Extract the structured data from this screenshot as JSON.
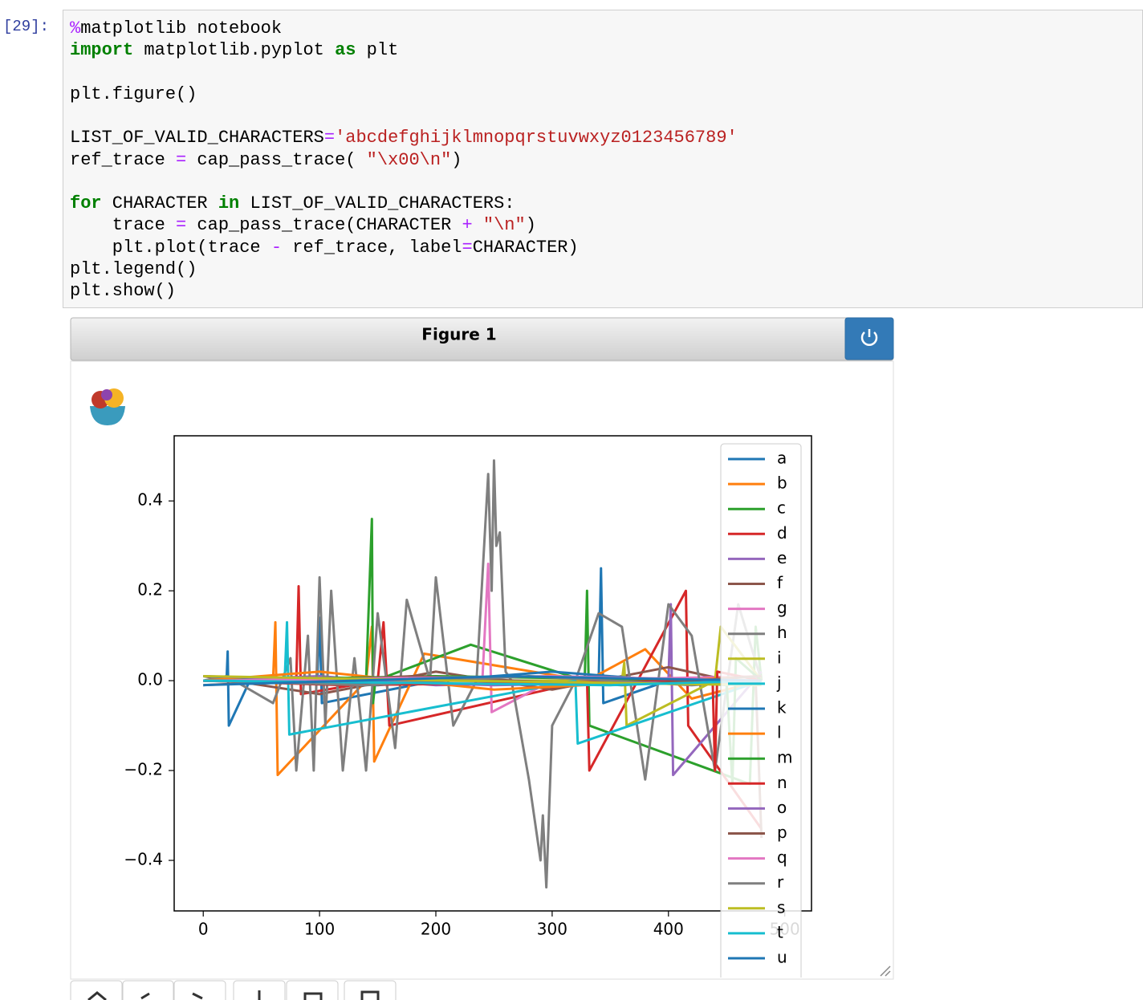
{
  "notebook": {
    "prompt": "[29]:",
    "code": [
      [
        {
          "text": "%",
          "color": "#aa22ff"
        },
        {
          "text": "matplotlib notebook"
        }
      ],
      [
        {
          "text": "import",
          "color": "#008000",
          "bold": true
        },
        {
          "text": " matplotlib.pyplot "
        },
        {
          "text": "as",
          "color": "#008000",
          "bold": true
        },
        {
          "text": " plt"
        }
      ],
      [],
      [
        {
          "text": "plt.figure()"
        }
      ],
      [],
      [
        {
          "text": "LIST_OF_VALID_CHARACTERS"
        },
        {
          "text": "=",
          "color": "#aa22ff"
        },
        {
          "text": "'abcdefghijklmnopqrstuvwxyz0123456789'",
          "color": "#ba2121"
        }
      ],
      [
        {
          "text": "ref_trace "
        },
        {
          "text": "=",
          "color": "#aa22ff"
        },
        {
          "text": " cap_pass_trace( "
        },
        {
          "text": "\"\\x00\\n\"",
          "color": "#ba2121"
        },
        {
          "text": ")"
        }
      ],
      [],
      [
        {
          "text": "for",
          "color": "#008000",
          "bold": true
        },
        {
          "text": " CHARACTER "
        },
        {
          "text": "in",
          "color": "#008000",
          "bold": true
        },
        {
          "text": " LIST_OF_VALID_CHARACTERS:"
        }
      ],
      [
        {
          "text": "    trace "
        },
        {
          "text": "=",
          "color": "#aa22ff"
        },
        {
          "text": " cap_pass_trace(CHARACTER "
        },
        {
          "text": "+",
          "color": "#aa22ff"
        },
        {
          "text": " "
        },
        {
          "text": "\"\\n\"",
          "color": "#ba2121"
        },
        {
          "text": ")"
        }
      ],
      [
        {
          "text": "    plt.plot(trace "
        },
        {
          "text": "-",
          "color": "#aa22ff"
        },
        {
          "text": " ref_trace, label"
        },
        {
          "text": "=",
          "color": "#aa22ff"
        },
        {
          "text": "CHARACTER)"
        }
      ],
      [
        {
          "text": "plt.legend()"
        }
      ],
      [
        {
          "text": "plt.show()"
        }
      ]
    ],
    "figure_title": "Figure 1"
  },
  "chart_data": {
    "type": "line",
    "grid": false,
    "legend": "upper right",
    "xlim": [
      -25,
      523
    ],
    "ylim": [
      -0.5125,
      0.545
    ],
    "xticks": [
      0,
      100,
      200,
      300,
      400,
      500
    ],
    "yticks": [
      {
        "value": -0.4,
        "label": "−0.4"
      },
      {
        "value": -0.2,
        "label": "−0.2"
      },
      {
        "value": 0,
        "label": "0.0"
      },
      0.2,
      0.4
    ],
    "series": [
      {
        "name": "a",
        "color": "#1f77b4",
        "x": [
          0,
          20,
          21,
          22,
          40,
          98,
          100,
          102,
          200,
          340,
          342,
          344,
          400,
          480
        ],
        "values": [
          0,
          0,
          0.065,
          -0.1,
          0,
          0,
          0.14,
          -0.05,
          0,
          0,
          0.25,
          -0.05,
          0,
          0
        ]
      },
      {
        "name": "b",
        "color": "#ff7f0e",
        "x": [
          0,
          60,
          62,
          64,
          140,
          145,
          147,
          190,
          330,
          380,
          420,
          480
        ],
        "values": [
          0,
          0,
          0.13,
          -0.21,
          0,
          0.12,
          -0.18,
          0.06,
          0,
          0.07,
          -0.04,
          0
        ]
      },
      {
        "name": "c",
        "color": "#2ca02c",
        "x": [
          0,
          140,
          145,
          146,
          148,
          230,
          328,
          330,
          332,
          470,
          475,
          480
        ],
        "values": [
          0,
          0,
          0.36,
          -0.05,
          0,
          0.08,
          0,
          0.2,
          -0.1,
          -0.23,
          0.12,
          0
        ]
      },
      {
        "name": "d",
        "color": "#d62728",
        "x": [
          0,
          80,
          82,
          84,
          150,
          155,
          160,
          330,
          332,
          415,
          417,
          480
        ],
        "values": [
          0,
          0,
          0.21,
          -0.03,
          0,
          0.13,
          -0.1,
          0,
          -0.2,
          0.2,
          -0.1,
          -0.33
        ]
      },
      {
        "name": "e",
        "color": "#9467bd",
        "x": [
          0,
          100,
          200,
          400,
          402,
          404,
          480
        ],
        "values": [
          0,
          0.01,
          -0.01,
          0,
          0.17,
          -0.21,
          0.02
        ]
      },
      {
        "name": "f",
        "color": "#8c564b",
        "x": [
          0,
          100,
          200,
          300,
          400,
          470,
          475,
          480
        ],
        "values": [
          0.01,
          -0.03,
          0.02,
          -0.02,
          0.03,
          -0.01,
          0,
          -0.35
        ]
      },
      {
        "name": "g",
        "color": "#e377c2",
        "x": [
          0,
          200,
          240,
          245,
          248,
          300,
          480
        ],
        "values": [
          0,
          0,
          0,
          0.26,
          -0.07,
          0,
          0.01
        ]
      },
      {
        "name": "h",
        "color": "#7f7f7f",
        "x": [
          0,
          20,
          60,
          75,
          80,
          90,
          95,
          100,
          105,
          110,
          120,
          130,
          140,
          150,
          165,
          175,
          195,
          200,
          215,
          235,
          245,
          248,
          250,
          252,
          255,
          260,
          265,
          280,
          290,
          292,
          295,
          300,
          320,
          340,
          360,
          380,
          400,
          420,
          440,
          460,
          480
        ],
        "values": [
          0,
          0.01,
          -0.05,
          0.05,
          -0.2,
          0.1,
          -0.2,
          0.23,
          -0.1,
          0.2,
          -0.2,
          0.05,
          -0.2,
          0.15,
          -0.15,
          0.18,
          0,
          0.23,
          -0.1,
          0,
          0.46,
          0.2,
          0.49,
          0.3,
          0.33,
          0.02,
          0,
          -0.22,
          -0.4,
          -0.3,
          -0.46,
          -0.1,
          0,
          0.15,
          0.12,
          -0.22,
          0.17,
          0.1,
          -0.2,
          0.17,
          0
        ]
      },
      {
        "name": "i",
        "color": "#bcbd22",
        "x": [
          0,
          360,
          362,
          364,
          440,
          445,
          480
        ],
        "values": [
          0,
          0,
          0.04,
          -0.1,
          0,
          0.12,
          0
        ]
      },
      {
        "name": "j",
        "color": "#17becf",
        "x": [
          0,
          70,
          72,
          74,
          320,
          322,
          480
        ],
        "values": [
          0,
          0,
          0.13,
          -0.12,
          0,
          -0.14,
          0
        ]
      },
      {
        "name": "k",
        "color": "#1f77b4",
        "x": [
          0,
          150,
          300,
          450,
          480
        ],
        "values": [
          0.01,
          -0.01,
          0.02,
          -0.01,
          0
        ]
      },
      {
        "name": "l",
        "color": "#ff7f0e",
        "x": [
          0,
          100,
          250,
          480
        ],
        "values": [
          0,
          0.02,
          -0.02,
          0.01
        ]
      },
      {
        "name": "m",
        "color": "#2ca02c",
        "x": [
          0,
          200,
          450,
          455,
          458,
          480
        ],
        "values": [
          0,
          0.01,
          0,
          -0.23,
          0.05,
          0
        ]
      },
      {
        "name": "n",
        "color": "#d62728",
        "x": [
          0,
          120,
          438,
          440,
          442,
          480
        ],
        "values": [
          0,
          -0.01,
          0,
          -0.2,
          0.02,
          0
        ]
      },
      {
        "name": "o",
        "color": "#9467bd",
        "x": [
          0,
          250,
          480
        ],
        "values": [
          0.01,
          -0.01,
          0
        ]
      },
      {
        "name": "p",
        "color": "#8c564b",
        "x": [
          0,
          180,
          360,
          480
        ],
        "values": [
          -0.01,
          0.01,
          -0.01,
          0.01
        ]
      },
      {
        "name": "q",
        "color": "#e377c2",
        "x": [
          0,
          300,
          480
        ],
        "values": [
          0,
          0.01,
          0
        ]
      },
      {
        "name": "r",
        "color": "#7f7f7f",
        "x": [
          0,
          140,
          280,
          420,
          480
        ],
        "values": [
          0,
          -0.01,
          0.01,
          -0.01,
          0
        ]
      },
      {
        "name": "s",
        "color": "#bcbd22",
        "x": [
          0,
          220,
          480
        ],
        "values": [
          0.01,
          0,
          -0.01
        ]
      },
      {
        "name": "t",
        "color": "#17becf",
        "x": [
          0,
          350,
          480
        ],
        "values": [
          0,
          -0.01,
          0
        ]
      },
      {
        "name": "u",
        "color": "#1f77b4",
        "x": [
          0,
          260,
          480
        ],
        "values": [
          -0.01,
          0.01,
          0
        ]
      }
    ]
  }
}
